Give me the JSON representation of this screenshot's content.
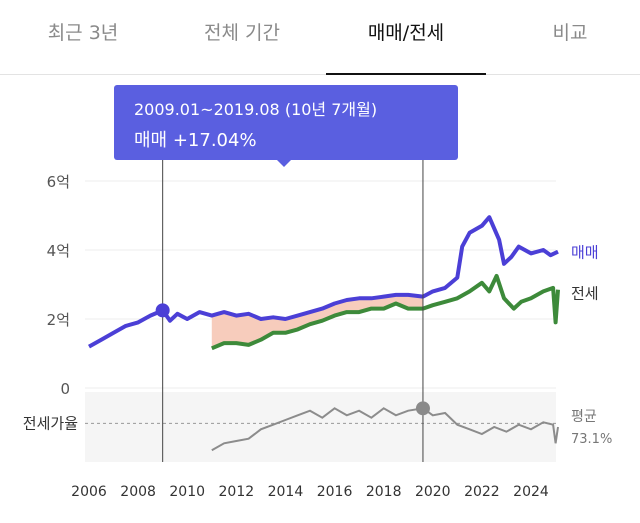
{
  "tabs": [
    {
      "label": "최근 3년",
      "active": false
    },
    {
      "label": "전체 기간",
      "active": false
    },
    {
      "label": "매매/전세",
      "active": true
    },
    {
      "label": "비교",
      "active": false
    }
  ],
  "tooltip": {
    "range": "2009.01~2019.08 (10년 7개월)",
    "change": "매매 +17.04%"
  },
  "colors": {
    "sale": "#4b3fd6",
    "jeonse": "#3d8a3a",
    "ratio": "#8c8c8c",
    "highlight": "#f6c3b0",
    "tooltip_bg": "#5a5fe0"
  },
  "chart_data": {
    "type": "line",
    "ylim": [
      0,
      6
    ],
    "yticks": [
      0,
      2,
      4,
      6
    ],
    "ytick_labels": [
      "0",
      "2억",
      "4억",
      "6억"
    ],
    "xticks": [
      2006,
      2008,
      2010,
      2012,
      2014,
      2016,
      2018,
      2020,
      2022,
      2024
    ],
    "xtick_labels": [
      "2006",
      "2008",
      "2010",
      "2012",
      "2014",
      "2016",
      "2018",
      "2020",
      "2022",
      "2024"
    ],
    "grid": true,
    "selection": {
      "start": 2009.0,
      "end": 2019.6
    },
    "series": [
      {
        "name": "매매",
        "points": [
          [
            2006.0,
            1.2
          ],
          [
            2006.5,
            1.4
          ],
          [
            2007.0,
            1.6
          ],
          [
            2007.5,
            1.8
          ],
          [
            2008.0,
            1.9
          ],
          [
            2008.5,
            2.1
          ],
          [
            2009.0,
            2.25
          ],
          [
            2009.3,
            1.95
          ],
          [
            2009.6,
            2.15
          ],
          [
            2010.0,
            2.0
          ],
          [
            2010.5,
            2.2
          ],
          [
            2011.0,
            2.1
          ],
          [
            2011.5,
            2.2
          ],
          [
            2012.0,
            2.1
          ],
          [
            2012.5,
            2.15
          ],
          [
            2013.0,
            2.0
          ],
          [
            2013.5,
            2.05
          ],
          [
            2014.0,
            2.0
          ],
          [
            2014.5,
            2.1
          ],
          [
            2015.0,
            2.2
          ],
          [
            2015.5,
            2.3
          ],
          [
            2016.0,
            2.45
          ],
          [
            2016.5,
            2.55
          ],
          [
            2017.0,
            2.6
          ],
          [
            2017.5,
            2.6
          ],
          [
            2018.0,
            2.65
          ],
          [
            2018.5,
            2.7
          ],
          [
            2019.0,
            2.7
          ],
          [
            2019.6,
            2.65
          ],
          [
            2020.0,
            2.8
          ],
          [
            2020.5,
            2.9
          ],
          [
            2021.0,
            3.2
          ],
          [
            2021.2,
            4.1
          ],
          [
            2021.5,
            4.5
          ],
          [
            2022.0,
            4.7
          ],
          [
            2022.3,
            4.95
          ],
          [
            2022.7,
            4.3
          ],
          [
            2022.9,
            3.6
          ],
          [
            2023.2,
            3.8
          ],
          [
            2023.5,
            4.1
          ],
          [
            2024.0,
            3.9
          ],
          [
            2024.5,
            4.0
          ],
          [
            2024.8,
            3.85
          ],
          [
            2025.1,
            3.95
          ]
        ]
      },
      {
        "name": "전세",
        "points": [
          [
            2011.0,
            1.15
          ],
          [
            2011.5,
            1.3
          ],
          [
            2012.0,
            1.3
          ],
          [
            2012.5,
            1.25
          ],
          [
            2013.0,
            1.4
          ],
          [
            2013.5,
            1.6
          ],
          [
            2014.0,
            1.6
          ],
          [
            2014.5,
            1.7
          ],
          [
            2015.0,
            1.85
          ],
          [
            2015.5,
            1.95
          ],
          [
            2016.0,
            2.1
          ],
          [
            2016.5,
            2.2
          ],
          [
            2017.0,
            2.2
          ],
          [
            2017.5,
            2.3
          ],
          [
            2018.0,
            2.3
          ],
          [
            2018.5,
            2.45
          ],
          [
            2019.0,
            2.3
          ],
          [
            2019.6,
            2.3
          ],
          [
            2020.0,
            2.4
          ],
          [
            2020.5,
            2.5
          ],
          [
            2021.0,
            2.6
          ],
          [
            2021.5,
            2.8
          ],
          [
            2022.0,
            3.05
          ],
          [
            2022.3,
            2.8
          ],
          [
            2022.6,
            3.25
          ],
          [
            2022.9,
            2.6
          ],
          [
            2023.3,
            2.3
          ],
          [
            2023.6,
            2.5
          ],
          [
            2024.0,
            2.6
          ],
          [
            2024.5,
            2.8
          ],
          [
            2024.9,
            2.9
          ],
          [
            2025.0,
            1.9
          ],
          [
            2025.1,
            2.85
          ]
        ]
      }
    ],
    "ratio_panel": {
      "label": "전세가율",
      "average_label": "평균",
      "average_value": "73.1%",
      "average": 73.1,
      "ylim": [
        40,
        100
      ],
      "points": [
        [
          2011.0,
          50
        ],
        [
          2011.5,
          56
        ],
        [
          2012.0,
          58
        ],
        [
          2012.5,
          60
        ],
        [
          2013.0,
          68
        ],
        [
          2013.5,
          72
        ],
        [
          2014.0,
          76
        ],
        [
          2014.5,
          80
        ],
        [
          2015.0,
          84
        ],
        [
          2015.5,
          78
        ],
        [
          2016.0,
          86
        ],
        [
          2016.5,
          80
        ],
        [
          2017.0,
          84
        ],
        [
          2017.5,
          78
        ],
        [
          2018.0,
          86
        ],
        [
          2018.5,
          80
        ],
        [
          2019.0,
          84
        ],
        [
          2019.6,
          86
        ],
        [
          2020.0,
          80
        ],
        [
          2020.5,
          82
        ],
        [
          2021.0,
          72
        ],
        [
          2021.5,
          68
        ],
        [
          2022.0,
          64
        ],
        [
          2022.5,
          70
        ],
        [
          2023.0,
          66
        ],
        [
          2023.5,
          72
        ],
        [
          2024.0,
          68
        ],
        [
          2024.5,
          74
        ],
        [
          2024.9,
          72
        ],
        [
          2025.0,
          56
        ],
        [
          2025.1,
          70
        ]
      ]
    }
  }
}
